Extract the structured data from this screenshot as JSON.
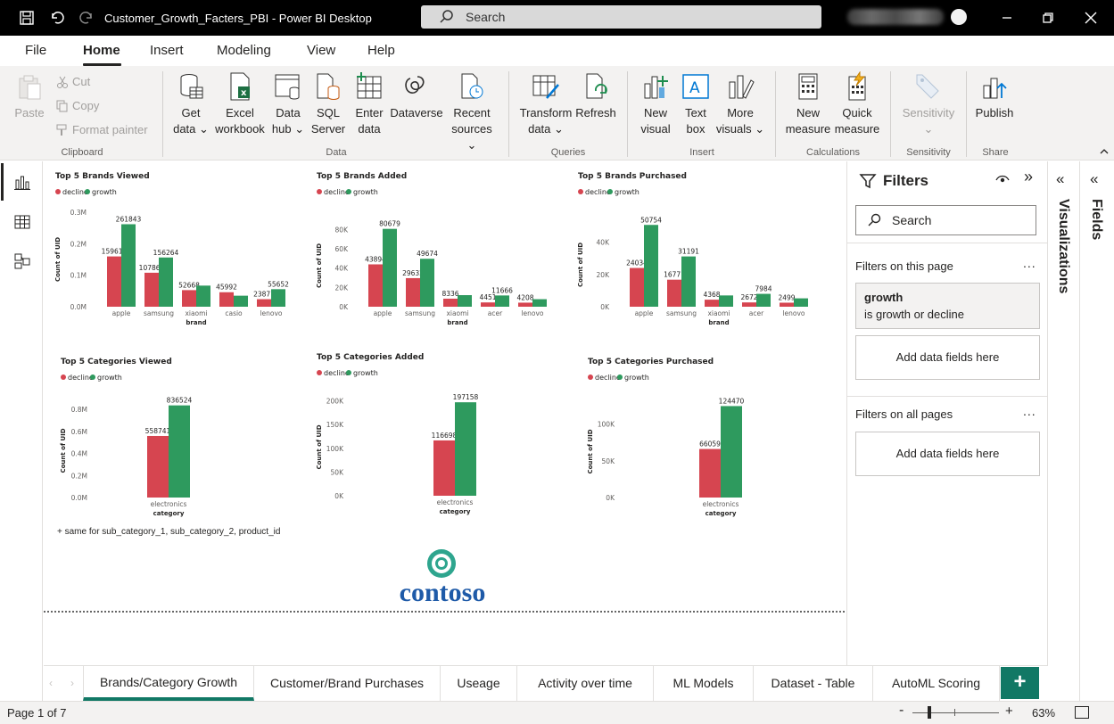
{
  "window": {
    "title": "Customer_Growth_Facters_PBI - Power BI Desktop",
    "search_label": "Search"
  },
  "menu": [
    "File",
    "Home",
    "Insert",
    "Modeling",
    "View",
    "Help"
  ],
  "ribbon": {
    "clipboard": {
      "paste": "Paste",
      "cut": "Cut",
      "copy": "Copy",
      "format_painter": "Format painter",
      "group": "Clipboard"
    },
    "data": {
      "get_data": [
        "Get",
        "data ⌄"
      ],
      "excel": [
        "Excel",
        "workbook"
      ],
      "data_hub": [
        "Data",
        "hub ⌄"
      ],
      "sql": [
        "SQL",
        "Server"
      ],
      "enter": [
        "Enter",
        "data"
      ],
      "dataverse": [
        "Dataverse",
        ""
      ],
      "recent": [
        "Recent",
        "sources ⌄"
      ],
      "group": "Data"
    },
    "queries": {
      "transform": [
        "Transform",
        "data ⌄"
      ],
      "refresh": [
        "Refresh",
        ""
      ],
      "group": "Queries"
    },
    "insert": {
      "new_visual": [
        "New",
        "visual"
      ],
      "text_box": [
        "Text",
        "box"
      ],
      "more_visuals": [
        "More",
        "visuals ⌄"
      ],
      "group": "Insert"
    },
    "calculations": {
      "new_measure": [
        "New",
        "measure"
      ],
      "quick_measure": [
        "Quick",
        "measure"
      ],
      "group": "Calculations"
    },
    "sensitivity": {
      "label": "Sensitivity",
      "chev": "⌄",
      "group": "Sensitivity"
    },
    "share": {
      "publish": "Publish",
      "group": "Share"
    }
  },
  "legend": {
    "decline": "decline",
    "growth": "growth"
  },
  "colors": {
    "decline": "#d64550",
    "growth": "#2e9a5e",
    "accent": "#117865"
  },
  "chart_data": [
    {
      "type": "bar",
      "title": "Top 5 Brands Viewed",
      "ylabel": "Count of UID",
      "xlabel": "brand",
      "categories": [
        "apple",
        "samsung",
        "xiaomi",
        "casio",
        "lenovo"
      ],
      "series": [
        {
          "name": "decline",
          "values": [
            159614,
            107863,
            52668,
            45992,
            23871
          ]
        },
        {
          "name": "growth",
          "values": [
            261843,
            156264,
            67000,
            35000,
            55652
          ]
        }
      ],
      "labels": {
        "decline": [
          "159614",
          "107863",
          "52668",
          "45992",
          "23871"
        ],
        "growth": [
          "261843",
          "156264",
          "",
          "",
          "55652"
        ]
      },
      "yticks": [
        "0.0M",
        "0.1M",
        "0.2M",
        "0.3M"
      ],
      "ytick_values": [
        0,
        100000,
        200000,
        300000
      ],
      "ymax": 300000
    },
    {
      "type": "bar",
      "title": "Top 5 Brands Added",
      "ylabel": "Count of UID",
      "xlabel": "brand",
      "categories": [
        "apple",
        "samsung",
        "xiaomi",
        "acer",
        "lenovo"
      ],
      "series": [
        {
          "name": "decline",
          "values": [
            43894,
            29632,
            8336,
            4451,
            4208
          ]
        },
        {
          "name": "growth",
          "values": [
            80679,
            49674,
            12000,
            11666,
            7800
          ]
        }
      ],
      "labels": {
        "decline": [
          "43894",
          "29632",
          "8336",
          "4451",
          "4208"
        ],
        "growth": [
          "80679",
          "49674",
          "",
          "11666",
          ""
        ]
      },
      "yticks": [
        "0K",
        "20K",
        "40K",
        "60K",
        "80K"
      ],
      "ytick_values": [
        0,
        20000,
        40000,
        60000,
        80000
      ],
      "ymax": 85000
    },
    {
      "type": "bar",
      "title": "Top 5 Brands Purchased",
      "ylabel": "Count of UID",
      "xlabel": "brand",
      "categories": [
        "apple",
        "samsung",
        "xiaomi",
        "acer",
        "lenovo"
      ],
      "series": [
        {
          "name": "decline",
          "values": [
            24034,
            16771,
            4368,
            2672,
            2499
          ]
        },
        {
          "name": "growth",
          "values": [
            50754,
            31191,
            7000,
            7984,
            5200
          ]
        }
      ],
      "labels": {
        "decline": [
          "24034",
          "16771",
          "4368",
          "2672",
          "2499"
        ],
        "growth": [
          "50754",
          "31191",
          "",
          "7984",
          ""
        ]
      },
      "yticks": [
        "0K",
        "20K",
        "40K"
      ],
      "ytick_values": [
        0,
        20000,
        40000
      ],
      "ymax": 52000
    },
    {
      "type": "bar",
      "title": "Top 5 Categories Viewed",
      "ylabel": "Count of UID",
      "xlabel": "category",
      "categories": [
        "electronics"
      ],
      "series": [
        {
          "name": "decline",
          "values": [
            558741
          ]
        },
        {
          "name": "growth",
          "values": [
            836524
          ]
        }
      ],
      "labels": {
        "decline": [
          "558741"
        ],
        "growth": [
          "836524"
        ]
      },
      "yticks": [
        "0.0M",
        "0.2M",
        "0.4M",
        "0.6M",
        "0.8M"
      ],
      "ytick_values": [
        0,
        200000,
        400000,
        600000,
        800000
      ],
      "ymax": 850000
    },
    {
      "type": "bar",
      "title": "Top 5 Categories Added",
      "ylabel": "Count of UID",
      "xlabel": "category",
      "categories": [
        "electronics"
      ],
      "series": [
        {
          "name": "decline",
          "values": [
            116698
          ]
        },
        {
          "name": "growth",
          "values": [
            197158
          ]
        }
      ],
      "labels": {
        "decline": [
          "116698"
        ],
        "growth": [
          "197158"
        ]
      },
      "yticks": [
        "0K",
        "50K",
        "100K",
        "150K",
        "200K"
      ],
      "ytick_values": [
        0,
        50000,
        100000,
        150000,
        200000
      ],
      "ymax": 205000
    },
    {
      "type": "bar",
      "title": "Top 5 Categories Purchased",
      "ylabel": "Count of UID",
      "xlabel": "category",
      "categories": [
        "electronics"
      ],
      "series": [
        {
          "name": "decline",
          "values": [
            66059
          ]
        },
        {
          "name": "growth",
          "values": [
            124470
          ]
        }
      ],
      "labels": {
        "decline": [
          "66059"
        ],
        "growth": [
          "124470"
        ]
      },
      "yticks": [
        "0K",
        "50K",
        "100K"
      ],
      "ytick_values": [
        0,
        50000,
        100000
      ],
      "ymax": 125000
    }
  ],
  "note": "+ same for sub_category_1, sub_category_2, product_id",
  "logo_text": "contoso",
  "filters": {
    "title": "Filters",
    "search": "Search",
    "on_this_page": "Filters on this page",
    "on_all_pages": "Filters on all pages",
    "more": "...",
    "card_field": "growth",
    "card_desc": "is growth or decline",
    "add_fields": "Add data fields here"
  },
  "panes": {
    "visualizations": "Visualizations",
    "fields": "Fields"
  },
  "tabs": [
    "Brands/Category Growth",
    "Customer/Brand Purchases",
    "Useage",
    "Activity over time",
    "ML Models",
    "Dataset - Table",
    "AutoML Scoring"
  ],
  "add_page": "+",
  "status": {
    "page": "Page 1 of 7",
    "zoom": "63%",
    "minus": "-",
    "plus": "+"
  }
}
